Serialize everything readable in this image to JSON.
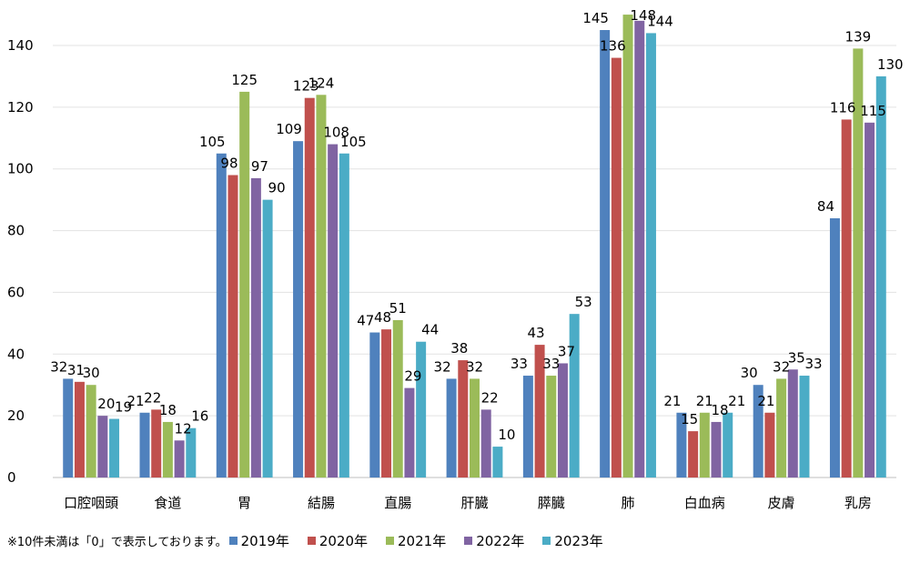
{
  "chart_data": {
    "type": "bar",
    "title": "",
    "xlabel": "",
    "ylabel": "",
    "ylim": [
      0,
      150
    ],
    "yticks": [
      0,
      20,
      40,
      60,
      80,
      100,
      120,
      140
    ],
    "grid": true,
    "legend_position": "bottom",
    "categories": [
      "口腔咽頭",
      "食道",
      "胃",
      "結腸",
      "直腸",
      "肝臓",
      "膵臓",
      "肺",
      "白血病",
      "皮膚",
      "乳房"
    ],
    "series": [
      {
        "name": "2019年",
        "color": "#4f81bd",
        "values": [
          32,
          21,
          105,
          109,
          47,
          32,
          33,
          145,
          21,
          30,
          84
        ]
      },
      {
        "name": "2020年",
        "color": "#c0504d",
        "values": [
          31,
          22,
          98,
          123,
          48,
          38,
          43,
          136,
          15,
          21,
          116
        ]
      },
      {
        "name": "2021年",
        "color": "#9bbb59",
        "values": [
          30,
          18,
          125,
          124,
          51,
          32,
          33,
          150,
          21,
          32,
          139
        ]
      },
      {
        "name": "2022年",
        "color": "#8064a2",
        "values": [
          20,
          12,
          97,
          108,
          29,
          22,
          37,
          148,
          18,
          35,
          115
        ]
      },
      {
        "name": "2023年",
        "color": "#4bacc6",
        "values": [
          19,
          16,
          90,
          105,
          44,
          10,
          53,
          144,
          21,
          33,
          130
        ]
      }
    ],
    "data_labels": [
      [
        "32",
        "21",
        "105",
        "109",
        "47",
        "32",
        "33",
        "145",
        "21",
        "30",
        "84"
      ],
      [
        "31",
        "22",
        "98",
        "123",
        "48",
        "38",
        "43",
        "136",
        "15",
        "21",
        "116"
      ],
      [
        "30",
        "18",
        "125",
        "124",
        "51",
        "32",
        "33",
        "",
        "21",
        "32",
        "139"
      ],
      [
        "20",
        "12",
        "97",
        "108",
        "29",
        "22",
        "37",
        "148",
        "18",
        "35",
        "115"
      ],
      [
        "19",
        "16",
        "90",
        "105",
        "44",
        "10",
        "53",
        "144",
        "21",
        "33",
        "130"
      ]
    ],
    "footnote": "※10件未満は「0」で表示しております。"
  }
}
